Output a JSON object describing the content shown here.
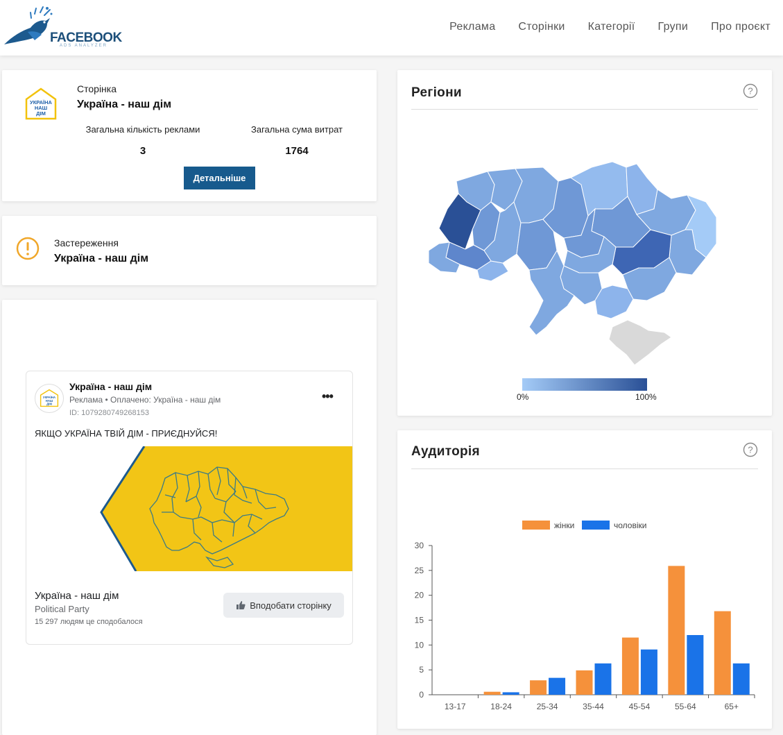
{
  "header": {
    "logo_text": "FACEBOOK",
    "logo_sub": "ADS ANALYZER",
    "nav": [
      "Реклама",
      "Сторінки",
      "Категорії",
      "Групи",
      "Про проєкт"
    ]
  },
  "page_card": {
    "logo_text": [
      "УКРАЇНА",
      "НАШ",
      "ДІМ"
    ],
    "caption": "Сторінка",
    "name": "Україна - наш дім",
    "ads_count_label": "Загальна кількість реклами",
    "ads_count": "3",
    "spend_label": "Загальна сума витрат",
    "spend": "1764",
    "details_button": "Детальніше"
  },
  "warning_card": {
    "caption": "Застереження",
    "name": "Україна - наш дім"
  },
  "ad": {
    "page_name": "Україна - наш дім",
    "meta": "Реклама • Оплачено: Україна - наш дім",
    "id": "ID: 1079280749268153",
    "more": "•••",
    "text": "ЯКЩО УКРАЇНА ТВІЙ ДІМ - ПРИЄДНУЙСЯ!",
    "footer_title": "Україна - наш дім",
    "footer_category": "Political Party",
    "footer_likes": "15 297 людям це сподобалося",
    "like_button": "Вподобати сторінку"
  },
  "regions": {
    "title": "Регіони",
    "legend_min": "0%",
    "legend_max": "100%",
    "colors": {
      "low": "#a4cbf7",
      "high": "#2a5096",
      "no_data": "#d9d9d9"
    }
  },
  "audience": {
    "title": "Аудиторія"
  },
  "chart_data": {
    "type": "bar",
    "categories": [
      "13-17",
      "18-24",
      "25-34",
      "35-44",
      "45-54",
      "55-64",
      "65+"
    ],
    "series": [
      {
        "name": "жінки",
        "color": "#f5913b",
        "values": [
          0,
          0.6,
          2.9,
          4.9,
          11.5,
          25.9,
          16.8
        ]
      },
      {
        "name": "чоловіки",
        "color": "#1a73e8",
        "values": [
          0,
          0.5,
          3.4,
          6.3,
          9.1,
          12.0,
          6.3
        ]
      }
    ],
    "ylim": [
      0,
      30
    ],
    "yticks": [
      0,
      5,
      10,
      15,
      20,
      25,
      30
    ],
    "legend_position": "top",
    "grid": false
  }
}
